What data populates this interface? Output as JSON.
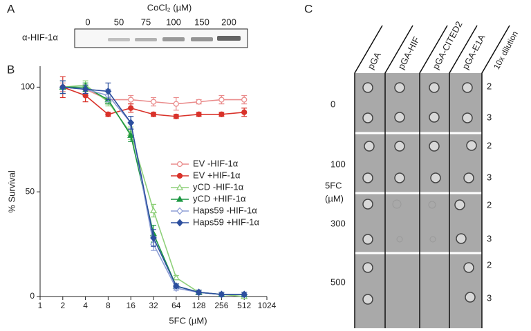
{
  "panel_a": {
    "label": "A",
    "title": "CoCl₂ (µM)",
    "lanes": [
      "0",
      "50",
      "75",
      "100",
      "150",
      "200"
    ],
    "row_label": "α-HIF-1α"
  },
  "chart_data": {
    "type": "line",
    "panel_label": "B",
    "x_label": "5FC (µM)",
    "y_label": "% Survival",
    "xscale": "log2",
    "xlim": [
      1,
      1024
    ],
    "xticks": [
      1,
      2,
      4,
      8,
      16,
      32,
      64,
      128,
      256,
      512,
      1024
    ],
    "ylim": [
      0,
      110
    ],
    "yticks": [
      0,
      50,
      100
    ],
    "x": [
      2,
      4,
      8,
      16,
      32,
      64,
      128,
      256,
      512
    ],
    "series": [
      {
        "name": "EV -HIF-1α",
        "color": "#ea8c8c",
        "marker": "circle",
        "filled": false,
        "values": [
          100,
          99,
          94,
          94,
          93,
          92,
          93,
          94,
          94
        ],
        "errors": [
          2,
          2,
          2,
          2,
          2,
          3,
          1,
          2,
          2
        ]
      },
      {
        "name": "EV +HIF-1α",
        "color": "#d9322a",
        "marker": "circle",
        "filled": true,
        "values": [
          100,
          96,
          87,
          90,
          87,
          86,
          87,
          87,
          88
        ],
        "errors": [
          5,
          3,
          1,
          2,
          1,
          1,
          1,
          1,
          2
        ]
      },
      {
        "name": "yCD -HIF-1α",
        "color": "#8fd07a",
        "marker": "triangle",
        "filled": false,
        "values": [
          100,
          101,
          93,
          78,
          41,
          9,
          2,
          1,
          0
        ],
        "errors": [
          3,
          2,
          2,
          3,
          3,
          1,
          1,
          1,
          1
        ]
      },
      {
        "name": "yCD +HIF-1α",
        "color": "#1a9641",
        "marker": "triangle",
        "filled": true,
        "values": [
          100,
          100,
          94,
          77,
          30,
          5,
          2,
          1,
          1
        ],
        "errors": [
          3,
          2,
          2,
          3,
          4,
          1,
          1,
          1,
          1
        ]
      },
      {
        "name": "Haps59 -HIF-1α",
        "color": "#8e9fd6",
        "marker": "diamond",
        "filled": false,
        "values": [
          100,
          99,
          96,
          83,
          25,
          4,
          2,
          1,
          1
        ],
        "errors": [
          3,
          2,
          3,
          3,
          3,
          1,
          1,
          1,
          1
        ]
      },
      {
        "name": "Haps59 +HIF-1α",
        "color": "#2c4f9e",
        "marker": "diamond",
        "filled": true,
        "values": [
          100,
          99,
          98,
          83,
          28,
          5,
          2,
          1,
          1
        ],
        "errors": [
          3,
          2,
          4,
          3,
          4,
          1,
          1,
          1,
          1
        ]
      }
    ]
  },
  "panel_c": {
    "label": "C",
    "columns": [
      "pGA",
      "pGA-HIF",
      "pGA-CITED2",
      "pGA-E1A"
    ],
    "dilution_header": "10x dilution",
    "rows": [
      {
        "concentration": "0",
        "dilutions": [
          "2",
          "3"
        ]
      },
      {
        "concentration": "100",
        "dilutions": [
          "2",
          "3"
        ]
      },
      {
        "concentration": "300",
        "dilutions": [
          "2",
          "3"
        ]
      },
      {
        "concentration": "500",
        "dilutions": [
          "2",
          "3"
        ]
      }
    ],
    "axis_label": [
      "5FC",
      "(µM)"
    ]
  }
}
